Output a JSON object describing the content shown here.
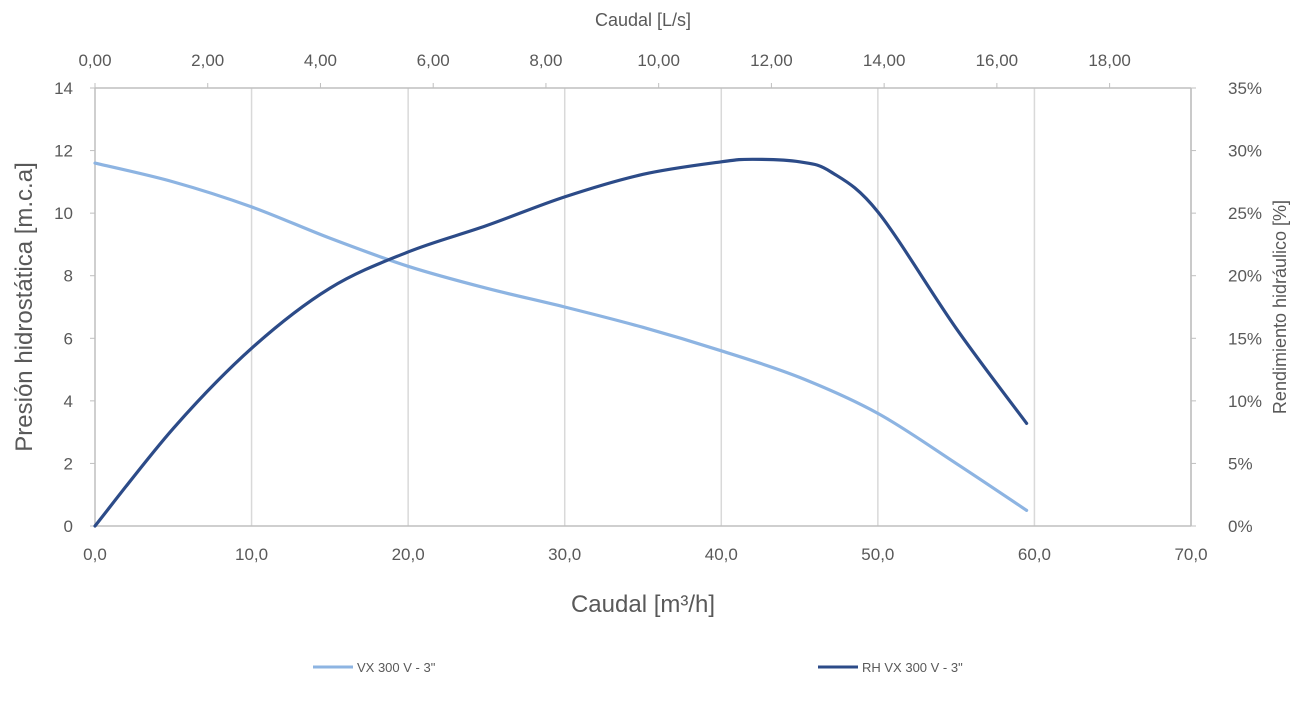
{
  "chart_data": {
    "type": "line",
    "x_axis_bottom": {
      "label": "Caudal [m³/h]",
      "range": [
        0,
        70
      ],
      "ticks": [
        "0,0",
        "10,0",
        "20,0",
        "30,0",
        "40,0",
        "50,0",
        "60,0",
        "70,0"
      ]
    },
    "x_axis_top": {
      "label": "Caudal [L/s]",
      "range": [
        0,
        19.444
      ],
      "ticks": [
        "0,00",
        "2,00",
        "4,00",
        "6,00",
        "8,00",
        "10,00",
        "12,00",
        "14,00",
        "16,00",
        "18,00"
      ]
    },
    "y_axis_left": {
      "label": "Presión hidrostática [m.c.a]",
      "range": [
        0,
        14
      ],
      "ticks": [
        "0",
        "2",
        "4",
        "6",
        "8",
        "10",
        "12",
        "14"
      ]
    },
    "y_axis_right": {
      "label": "Rendimiento hidráulico [%]",
      "range": [
        0,
        35
      ],
      "ticks": [
        "0%",
        "5%",
        "10%",
        "15%",
        "20%",
        "25%",
        "30%",
        "35%"
      ]
    },
    "grid": "vertical",
    "legend_position": "bottom",
    "series": [
      {
        "name": "VX 300 V - 3\"",
        "axis": "left",
        "color": "#8db4e2",
        "x": [
          0,
          5,
          10,
          15,
          20,
          25,
          30,
          35,
          40,
          45,
          50,
          55,
          59.5
        ],
        "y": [
          11.6,
          11.0,
          10.2,
          9.2,
          8.3,
          7.6,
          7.0,
          6.35,
          5.6,
          4.75,
          3.6,
          2.0,
          0.5
        ]
      },
      {
        "name": "RH VX 300 V - 3\"",
        "axis": "right",
        "color": "#2c4b88",
        "x": [
          0,
          5,
          10,
          15,
          20,
          25,
          30,
          35,
          40,
          42,
          45,
          47,
          50,
          55,
          59.5
        ],
        "y": [
          0,
          7.8,
          14.2,
          19.0,
          21.9,
          24.0,
          26.3,
          28.1,
          29.1,
          29.3,
          29.1,
          28.3,
          25.1,
          15.8,
          8.2
        ]
      }
    ]
  }
}
